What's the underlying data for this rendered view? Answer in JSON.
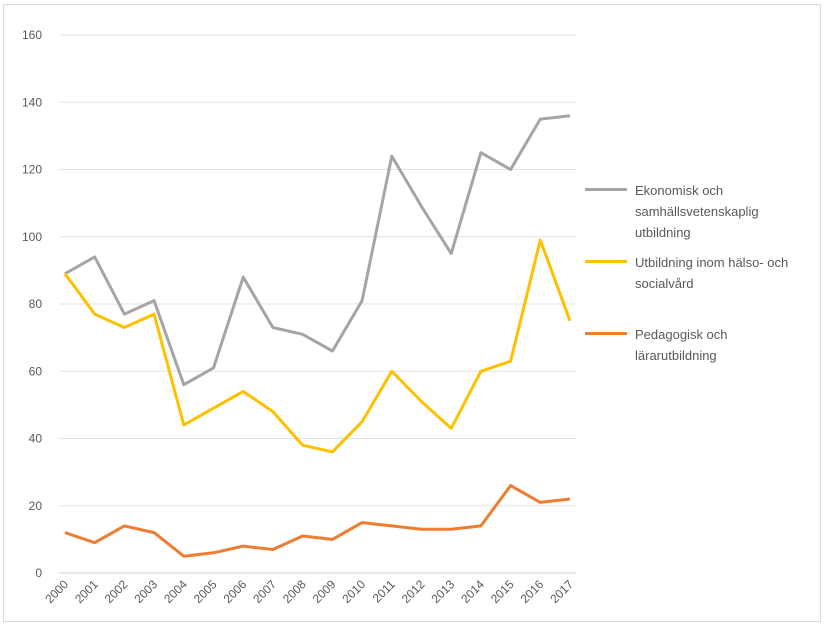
{
  "chart_data": {
    "type": "line",
    "x": [
      "2000",
      "2001",
      "2002",
      "2003",
      "2004",
      "2005",
      "2006",
      "2007",
      "2008",
      "2009",
      "2010",
      "2011",
      "2012",
      "2013",
      "2014",
      "2015",
      "2016",
      "2017"
    ],
    "ylim": [
      0,
      160
    ],
    "yticks": [
      0,
      20,
      40,
      60,
      80,
      100,
      120,
      140,
      160
    ],
    "grid": true,
    "legend_position": "right",
    "series": [
      {
        "name": "Ekonomisk och samhällsvetenskaplig utbildning",
        "color": "#a5a5a5",
        "values": [
          89,
          94,
          77,
          81,
          56,
          61,
          88,
          73,
          71,
          66,
          81,
          124,
          109,
          95,
          125,
          120,
          135,
          136
        ]
      },
      {
        "name": "Utbildning inom hälso- och socialvård",
        "color": "#ffc000",
        "values": [
          89,
          77,
          73,
          77,
          44,
          49,
          54,
          48,
          38,
          36,
          45,
          60,
          51,
          43,
          60,
          63,
          99,
          75
        ]
      },
      {
        "name": "Pedagogisk och lärarutbildning",
        "color": "#ed7d31",
        "values": [
          12,
          9,
          14,
          12,
          5,
          6,
          8,
          7,
          11,
          10,
          15,
          14,
          13,
          13,
          14,
          26,
          21,
          22
        ]
      }
    ]
  }
}
